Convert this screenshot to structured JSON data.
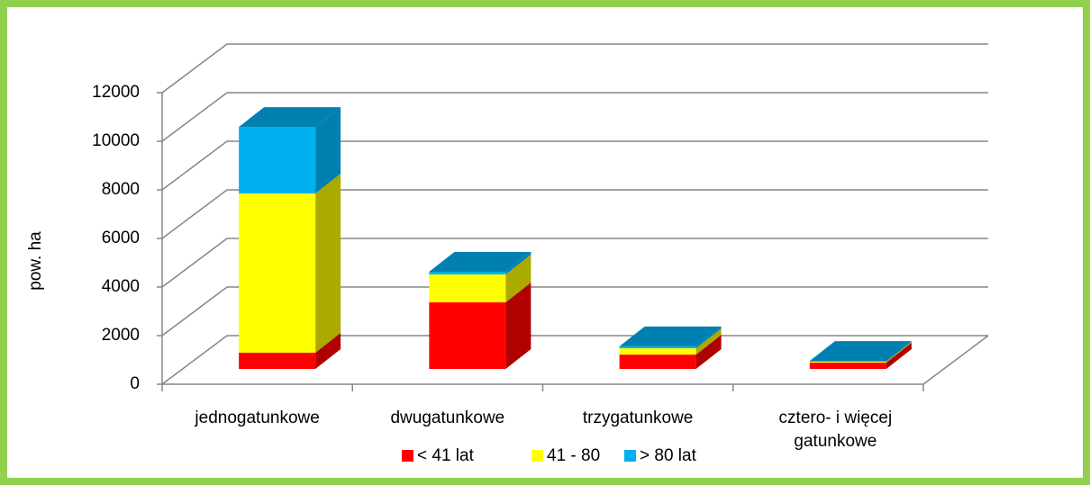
{
  "chart_data": {
    "type": "bar3d-stacked",
    "y_label": "pow. ha",
    "categories": [
      "jednogatunkowe",
      "dwugatunkowe",
      "trzygatunkowe",
      "cztero- i więcej gatunkowe"
    ],
    "series": [
      {
        "name": "< 41 lat",
        "color": "#ff0000",
        "side": "#b00000",
        "values": [
          670,
          2740,
          590,
          260
        ]
      },
      {
        "name": "41 - 80",
        "color": "#ffff00",
        "side": "#aaaa00",
        "values": [
          6550,
          1150,
          260,
          40
        ]
      },
      {
        "name": "> 80 lat",
        "color": "#00b0f0",
        "side": "#0080b0",
        "values": [
          2740,
          110,
          80,
          30
        ]
      }
    ],
    "ylim": [
      0,
      12000
    ],
    "yticks": [
      0,
      2000,
      4000,
      6000,
      8000,
      10000,
      12000
    ],
    "grid": true
  }
}
